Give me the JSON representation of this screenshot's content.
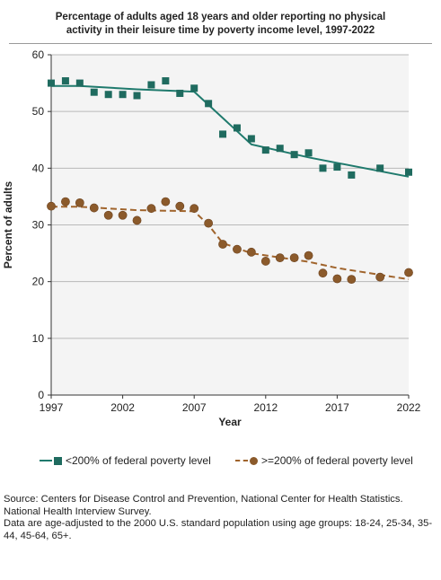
{
  "title_lines": [
    "Percentage of adults aged 18 years and older reporting no physical",
    "activity in their leisure time by poverty income level, 1997-2022"
  ],
  "source_lines": [
    "Source: Centers for Disease Control and Prevention, National Center for Health Statistics. National Health Interview Survey.",
    "Data are age-adjusted to the 2000 U.S. standard population using age groups: 18-24, 25-34, 35-44, 45-64, 65+."
  ],
  "colors": {
    "series_low": "#1f6b5f",
    "series_low_line": "#1f7a6d",
    "series_high": "#8b5a2b",
    "series_high_line": "#a0642c",
    "plot_bg": "#f4f4f4",
    "grid": "#b9b9b9"
  },
  "chart_data": {
    "type": "scatter",
    "xlabel": "Year",
    "ylabel": "Percent of adults",
    "xlim": [
      1997,
      2022
    ],
    "ylim": [
      0,
      60
    ],
    "x_ticks": [
      1997,
      2002,
      2007,
      2012,
      2017,
      2022
    ],
    "y_ticks": [
      0,
      10,
      20,
      30,
      40,
      50,
      60
    ],
    "grid": "horizontal",
    "legend_position": "bottom",
    "series": [
      {
        "name": "<200% of federal poverty level",
        "marker": "square",
        "points": [
          [
            1997,
            55.0
          ],
          [
            1998,
            55.4
          ],
          [
            1999,
            55.0
          ],
          [
            2000,
            53.4
          ],
          [
            2001,
            53.0
          ],
          [
            2002,
            53.0
          ],
          [
            2003,
            52.8
          ],
          [
            2004,
            54.7
          ],
          [
            2005,
            55.4
          ],
          [
            2006,
            53.2
          ],
          [
            2007,
            54.1
          ],
          [
            2008,
            51.4
          ],
          [
            2009,
            46.0
          ],
          [
            2010,
            47.1
          ],
          [
            2011,
            45.2
          ],
          [
            2012,
            43.2
          ],
          [
            2013,
            43.5
          ],
          [
            2014,
            42.4
          ],
          [
            2015,
            42.7
          ],
          [
            2016,
            40.0
          ],
          [
            2017,
            40.2
          ],
          [
            2018,
            38.8
          ],
          [
            2020,
            40.0
          ],
          [
            2022,
            39.3
          ]
        ],
        "trend": [
          [
            1997,
            54.5
          ],
          [
            1999,
            54.5
          ],
          [
            2003,
            53.9
          ],
          [
            2007,
            53.5
          ],
          [
            2011,
            44.2
          ],
          [
            2015,
            41.9
          ],
          [
            2022,
            38.5
          ]
        ]
      },
      {
        "name": ">=200% of federal poverty level",
        "marker": "circle",
        "points": [
          [
            1997,
            33.3
          ],
          [
            1998,
            34.1
          ],
          [
            1999,
            33.9
          ],
          [
            2000,
            33.0
          ],
          [
            2001,
            31.7
          ],
          [
            2002,
            31.7
          ],
          [
            2003,
            30.8
          ],
          [
            2004,
            32.9
          ],
          [
            2005,
            34.1
          ],
          [
            2006,
            33.3
          ],
          [
            2007,
            32.9
          ],
          [
            2008,
            30.3
          ],
          [
            2009,
            26.6
          ],
          [
            2010,
            25.7
          ],
          [
            2011,
            25.2
          ],
          [
            2012,
            23.6
          ],
          [
            2013,
            24.2
          ],
          [
            2014,
            24.2
          ],
          [
            2015,
            24.6
          ],
          [
            2016,
            21.5
          ],
          [
            2017,
            20.5
          ],
          [
            2018,
            20.4
          ],
          [
            2020,
            20.8
          ],
          [
            2022,
            21.6
          ]
        ],
        "trend": [
          [
            1997,
            33.2
          ],
          [
            1999,
            33.2
          ],
          [
            2003,
            32.6
          ],
          [
            2007,
            32.4
          ],
          [
            2008,
            30.0
          ],
          [
            2009,
            26.8
          ],
          [
            2011,
            25.0
          ],
          [
            2015,
            23.5
          ],
          [
            2017,
            22.4
          ],
          [
            2022,
            20.4
          ]
        ]
      }
    ]
  }
}
